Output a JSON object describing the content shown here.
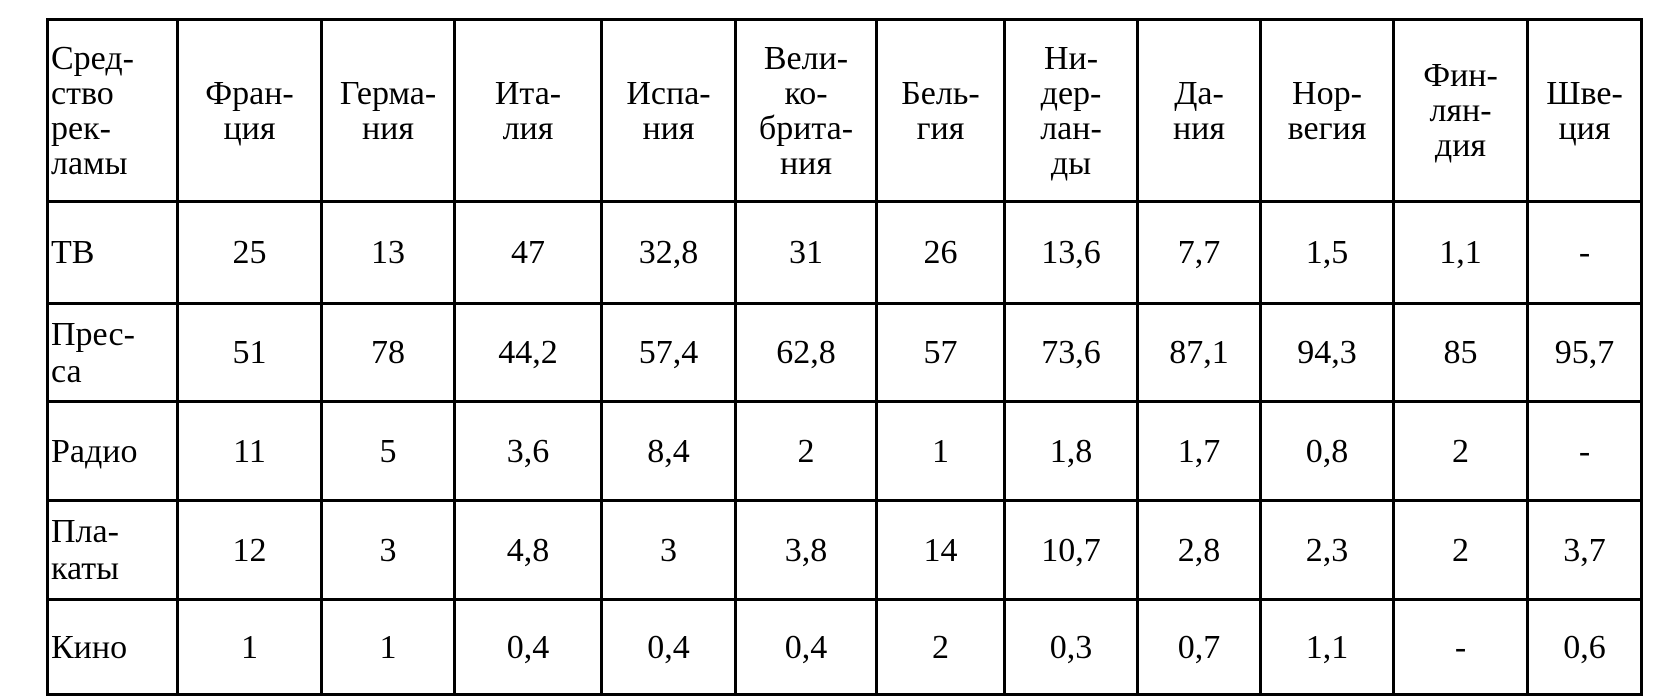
{
  "table": {
    "header": [
      [
        "Сред-",
        "ство",
        "рек-",
        "ламы"
      ],
      [
        "Фран-",
        "ция"
      ],
      [
        "Герма-",
        "ния"
      ],
      [
        "Ита-",
        "лия"
      ],
      [
        "Испа-",
        "ния"
      ],
      [
        "Вели-",
        "ко-",
        "брита-",
        "ния"
      ],
      [
        "Бель-",
        "гия"
      ],
      [
        "Ни-",
        "дер-",
        "лан-",
        "ды"
      ],
      [
        "Да-",
        "ния"
      ],
      [
        "Нор-",
        "вегия"
      ],
      [
        "Фин-",
        "лян-",
        "дия"
      ],
      [
        "Шве-",
        "ция"
      ]
    ],
    "rows": [
      [
        [
          "ТВ"
        ],
        "25",
        "13",
        "47",
        "32,8",
        "31",
        "26",
        "13,6",
        "7,7",
        "1,5",
        "1,1",
        "-"
      ],
      [
        [
          "Прес-",
          "са"
        ],
        "51",
        "78",
        "44,2",
        "57,4",
        "62,8",
        "57",
        "73,6",
        "87,1",
        "94,3",
        "85",
        "95,7"
      ],
      [
        [
          "Радио"
        ],
        "11",
        "5",
        "3,6",
        "8,4",
        "2",
        "1",
        "1,8",
        "1,7",
        "0,8",
        "2",
        "-"
      ],
      [
        [
          "Пла-",
          "каты"
        ],
        "12",
        "3",
        "4,8",
        "3",
        "3,8",
        "14",
        "10,7",
        "2,8",
        "2,3",
        "2",
        "3,7"
      ],
      [
        [
          "Кино"
        ],
        "1",
        "1",
        "0,4",
        "0,4",
        "0,4",
        "2",
        "0,3",
        "0,7",
        "1,1",
        "-",
        "0,6"
      ]
    ]
  }
}
